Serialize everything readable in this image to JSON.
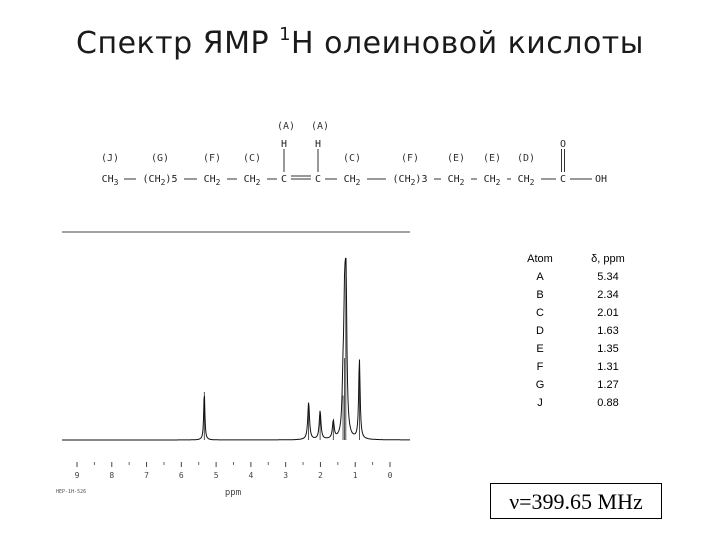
{
  "title": {
    "prefix": "Спектр ЯМР ",
    "sup": "1",
    "suffix": "Н олеиновой кислоты"
  },
  "formula": {
    "top_labels": [
      {
        "text": "(A)",
        "group": 4
      },
      {
        "text": "(A)",
        "group": 5
      }
    ],
    "h_atoms": [
      {
        "text": "H",
        "group": 4
      },
      {
        "text": "H",
        "group": 5
      }
    ],
    "carbonyl_o": "O",
    "groups": [
      {
        "label": "(J)",
        "atom": "CH3",
        "main": "CH",
        "sub": "3",
        "tail": ""
      },
      {
        "label": "(G)",
        "atom": "(CH2)5",
        "main": "(CH",
        "sub": "2",
        "tail": ")5"
      },
      {
        "label": "(F)",
        "atom": "CH2",
        "main": "CH",
        "sub": "2",
        "tail": ""
      },
      {
        "label": "(C)",
        "atom": "CH2",
        "main": "CH",
        "sub": "2",
        "tail": ""
      },
      {
        "label": "",
        "atom": "C",
        "main": "C",
        "sub": "",
        "tail": ""
      },
      {
        "label": "",
        "atom": "C",
        "main": "C",
        "sub": "",
        "tail": ""
      },
      {
        "label": "(C)",
        "atom": "CH2",
        "main": "CH",
        "sub": "2",
        "tail": ""
      },
      {
        "label": "(F)",
        "atom": "(CH2)3",
        "main": "(CH",
        "sub": "2",
        "tail": ")3"
      },
      {
        "label": "(E)",
        "atom": "CH2",
        "main": "CH",
        "sub": "2",
        "tail": ""
      },
      {
        "label": "(E)",
        "atom": "CH2",
        "main": "CH",
        "sub": "2",
        "tail": ""
      },
      {
        "label": "(D)",
        "atom": "CH2",
        "main": "CH",
        "sub": "2",
        "tail": ""
      },
      {
        "label": "",
        "atom": "C",
        "main": "C",
        "sub": "",
        "tail": ""
      },
      {
        "label": "",
        "atom": "OH",
        "main": "OH",
        "sub": "",
        "tail": ""
      }
    ]
  },
  "table": {
    "headers": [
      "Atom",
      "δ, ppm"
    ],
    "rows": [
      [
        "A",
        "5.34"
      ],
      [
        "B",
        "2.34"
      ],
      [
        "C",
        "2.01"
      ],
      [
        "D",
        "1.63"
      ],
      [
        "E",
        "1.35"
      ],
      [
        "F",
        "1.31"
      ],
      [
        "G",
        "1.27"
      ],
      [
        "J",
        "0.88"
      ]
    ]
  },
  "frequency_label": "ν=399.65 MHz",
  "chart_data": {
    "type": "line",
    "title": "",
    "xlabel": "ppm",
    "ylabel": "",
    "xlim": [
      9.5,
      -0.5
    ],
    "x_reversed": true,
    "x_ticks": [
      "9",
      "8",
      "7",
      "6",
      "5",
      "4",
      "3",
      "2",
      "1",
      "0"
    ],
    "grid": false,
    "corner_note": "HEP-1H-526",
    "peaks": [
      {
        "ppm": 5.34,
        "height": 0.27,
        "width": 0.02
      },
      {
        "ppm": 2.34,
        "height": 0.21,
        "width": 0.03
      },
      {
        "ppm": 2.01,
        "height": 0.16,
        "width": 0.03
      },
      {
        "ppm": 1.63,
        "height": 0.1,
        "width": 0.03
      },
      {
        "ppm": 1.35,
        "height": 0.25,
        "width": 0.03
      },
      {
        "ppm": 1.31,
        "height": 0.46,
        "width": 0.025
      },
      {
        "ppm": 1.27,
        "height": 1.0,
        "width": 0.03
      },
      {
        "ppm": 0.88,
        "height": 0.45,
        "width": 0.025
      }
    ]
  }
}
